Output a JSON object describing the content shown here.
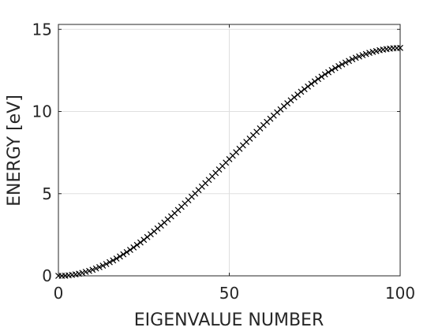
{
  "chart_data": {
    "type": "scatter",
    "title": "",
    "xlabel": "EIGENVALUE NUMBER",
    "ylabel": "ENERGY [eV]",
    "xlim": [
      0,
      100
    ],
    "ylim": [
      0,
      15.3
    ],
    "xticks": [
      0,
      50,
      100
    ],
    "yticks": [
      0,
      5,
      10,
      15
    ],
    "xtick_labels": [
      "0",
      "50",
      "100"
    ],
    "ytick_labels": [
      "0",
      "5",
      "10",
      "15"
    ],
    "grid": true,
    "marker": "x",
    "marker_color": "#000000",
    "series": [
      {
        "x": [
          0,
          1,
          2,
          3,
          4,
          5,
          6,
          7,
          8,
          9,
          10,
          11,
          12,
          13,
          14,
          15,
          16,
          17,
          18,
          19,
          20,
          21,
          22,
          23,
          24,
          25,
          26,
          27,
          28,
          29,
          30,
          31,
          32,
          33,
          34,
          35,
          36,
          37,
          38,
          39,
          40,
          41,
          42,
          43,
          44,
          45,
          46,
          47,
          48,
          49,
          50,
          51,
          52,
          53,
          54,
          55,
          56,
          57,
          58,
          59,
          60,
          61,
          62,
          63,
          64,
          65,
          66,
          67,
          68,
          69,
          70,
          71,
          72,
          73,
          74,
          75,
          76,
          77,
          78,
          79,
          80,
          81,
          82,
          83,
          84,
          85,
          86,
          87,
          88,
          89,
          90,
          91,
          92,
          93,
          94,
          95,
          96,
          97,
          98,
          99,
          100
        ],
        "y": [
          0.0,
          0.0,
          0.01,
          0.03,
          0.06,
          0.09,
          0.13,
          0.18,
          0.24,
          0.3,
          0.37,
          0.45,
          0.53,
          0.62,
          0.72,
          0.83,
          0.94,
          1.05,
          1.18,
          1.31,
          1.44,
          1.58,
          1.73,
          1.88,
          2.03,
          2.19,
          2.36,
          2.53,
          2.7,
          2.88,
          3.06,
          3.24,
          3.43,
          3.62,
          3.81,
          4.01,
          4.2,
          4.4,
          4.6,
          4.81,
          5.01,
          5.22,
          5.43,
          5.64,
          5.84,
          6.05,
          6.26,
          6.47,
          6.68,
          6.89,
          7.1,
          7.31,
          7.52,
          7.73,
          7.94,
          8.15,
          8.35,
          8.56,
          8.76,
          8.97,
          9.17,
          9.37,
          9.56,
          9.75,
          9.95,
          10.13,
          10.32,
          10.5,
          10.68,
          10.86,
          11.03,
          11.2,
          11.36,
          11.52,
          11.68,
          11.83,
          11.98,
          12.12,
          12.26,
          12.39,
          12.52,
          12.64,
          12.76,
          12.87,
          12.98,
          13.08,
          13.18,
          13.27,
          13.35,
          13.43,
          13.5,
          13.57,
          13.63,
          13.68,
          13.73,
          13.77,
          13.8,
          13.83,
          13.85,
          13.86,
          13.87
        ]
      }
    ]
  }
}
